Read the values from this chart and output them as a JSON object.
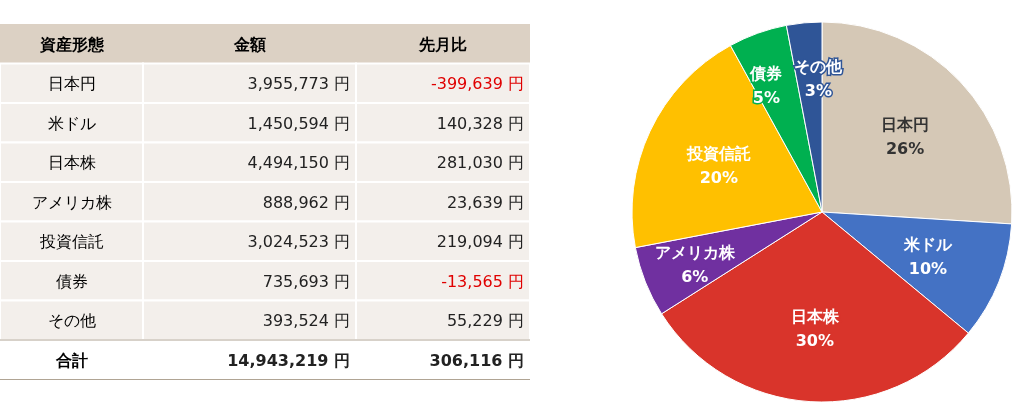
{
  "chart_data": [
    {
      "type": "other",
      "annotations": [
        "資産形態"
      ],
      "categories": [
        "日本円",
        "米ドル",
        "日本株",
        "アメリカ株",
        "投資信託",
        "債券",
        "その他",
        "合計"
      ],
      "series": [
        {
          "name": "金額",
          "values": [
            3955773,
            1450594,
            4494150,
            888962,
            3024523,
            735693,
            393524,
            14943219
          ],
          "value_labels": [
            "3,955,773 円",
            "1,450,594 円",
            "4,494,150 円",
            "888,962 円",
            "3,024,523 円",
            "735,693 円",
            "393,524 円",
            "14,943,219 円"
          ]
        },
        {
          "name": "先月比",
          "values": [
            -399639,
            140328,
            281030,
            23639,
            219094,
            -13565,
            55229,
            306116
          ],
          "value_labels": [
            "-399,639 円",
            "140,328 円",
            "281,030 円",
            "23,639 円",
            "219,094 円",
            "-13,565 円",
            "55,229 円",
            "306,116 円"
          ]
        }
      ]
    },
    {
      "type": "pie",
      "categories": [
        "日本円",
        "米ドル",
        "日本株",
        "アメリカ株",
        "投資信託",
        "債券",
        "その他"
      ],
      "values": [
        26,
        10,
        30,
        6,
        20,
        5,
        3
      ],
      "colors": [
        "#d5c8b6",
        "#4472c4",
        "#d9342b",
        "#7030a0",
        "#ffc000",
        "#00b050",
        "#2f5597"
      ],
      "value_labels": [
        "26%",
        "10%",
        "30%",
        "6%",
        "20%",
        "5%",
        "3%"
      ]
    }
  ]
}
